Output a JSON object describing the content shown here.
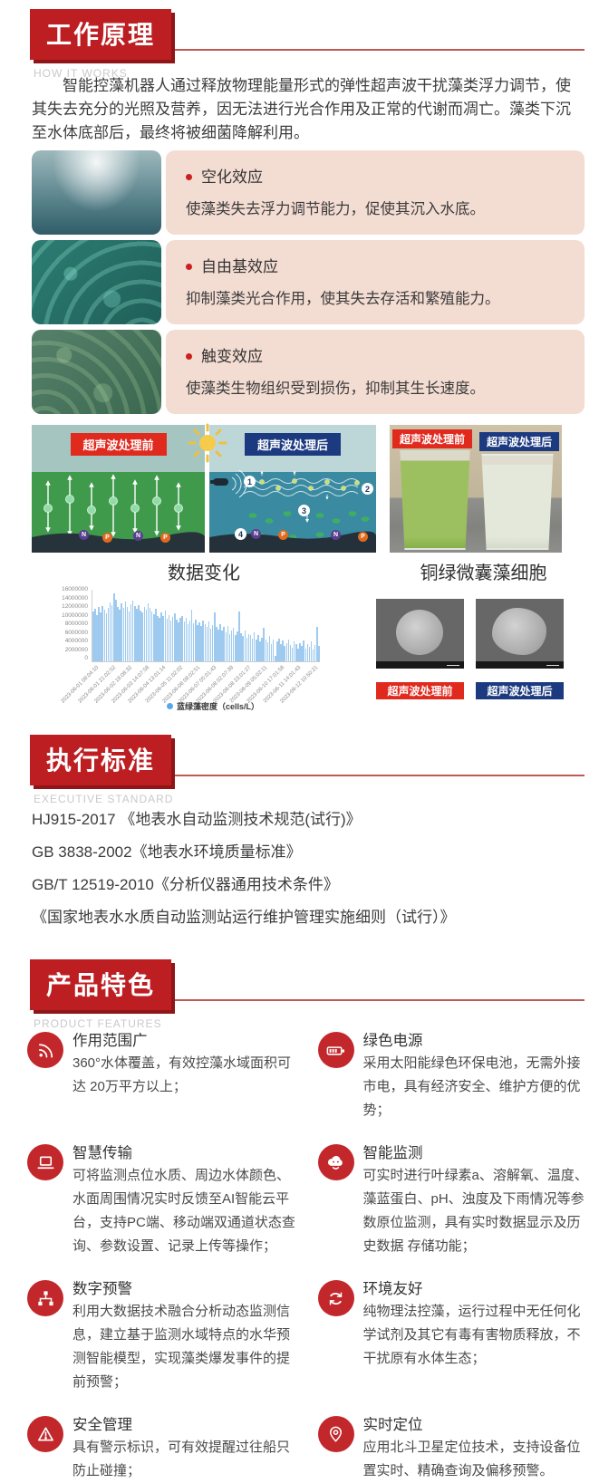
{
  "colors": {
    "accent_red": "#bd1e22",
    "header_shadow": "#8e1518",
    "divider": "#c05a50",
    "card_pink": "#f3dcd2",
    "bar_blue": "#9ecaef",
    "label_red": "#e02a1e",
    "label_navy": "#1c3a80",
    "icon_red": "#c2282b"
  },
  "how_it_works": {
    "title": "工作原理",
    "subtitle": "HOW IT WORKS",
    "intro": "智能控藻机器人通过释放物理能量形式的弹性超声波干扰藻类浮力调节，使其失去充分的光照及营养，因无法进行光合作用及正常的代谢而凋亡。藻类下沉至水体底部后，最终将被细菌降解利用。",
    "effects": [
      {
        "title": "空化效应",
        "desc": "使藻类失去浮力调节能力，促使其沉入水底。"
      },
      {
        "title": "自由基效应",
        "desc": "抑制藻类光合作用，使其失去存活和繁殖能力。"
      },
      {
        "title": "触变效应",
        "desc": "使藻类生物组织受到损伤，抑制其生长速度。"
      }
    ],
    "comparison": {
      "before_label": "超声波处理前",
      "after_label": "超声波处理后",
      "beaker_before_label": "超声波处理前",
      "beaker_after_label": "超声波处理后",
      "steps": [
        "1",
        "2",
        "3",
        "4"
      ],
      "nutrients_before": [
        "N",
        "P",
        "N",
        "P"
      ],
      "nutrients_after": [
        "N",
        "P",
        "N",
        "P"
      ]
    },
    "captions": {
      "chart": "数据变化",
      "cells": "铜绿微囊藻细胞"
    },
    "cells_labels": {
      "before": "超声波处理前",
      "after": "超声波处理后"
    }
  },
  "chart_data": {
    "type": "bar",
    "title": "数据变化",
    "series_name": "蓝绿藻密度（cells/L）",
    "unit": "cells/L",
    "ylim": [
      0,
      16000000
    ],
    "y_tick_step": 2000000,
    "grid": false,
    "legend_position": "bottom",
    "x_tick_labels": [
      "2023-06-01 08:04:10",
      "2023-06-01 21:02:52",
      "2023-06-02 18:08:32",
      "2023-06-03 14:07:58",
      "2023-06-04 13:01:14",
      "2023-06-05 11:02:02",
      "2023-06-06 08:02:51",
      "2023-06-07 05:01:43",
      "2023-06-08 02:07:39",
      "2023-06-08 23:01:27",
      "2023-06-09 05:02:11",
      "2023-06-10 17:01:58",
      "2023-06-11 14:01:43",
      "2023-06-12 10:50:21"
    ],
    "values_millions": [
      11.2,
      11.8,
      10.4,
      12.1,
      11.0,
      12.4,
      11.5,
      10.7,
      12.0,
      13.1,
      12.6,
      15.2,
      13.7,
      12.2,
      11.6,
      12.9,
      11.9,
      13.4,
      12.1,
      11.2,
      12.8,
      13.6,
      12.4,
      11.8,
      12.6,
      11.3,
      10.9,
      12.2,
      11.6,
      13.0,
      12.0,
      11.2,
      10.6,
      11.8,
      10.2,
      9.8,
      10.9,
      10.1,
      11.3,
      9.6,
      10.4,
      9.2,
      9.9,
      10.8,
      9.4,
      8.8,
      9.7,
      10.2,
      8.9,
      9.8,
      8.4,
      9.1,
      11.6,
      8.6,
      9.4,
      8.1,
      8.8,
      7.9,
      9.2,
      8.4,
      7.6,
      8.9,
      7.2,
      8.1,
      10.9,
      7.8,
      7.1,
      8.4,
      6.8,
      7.6,
      6.4,
      7.9,
      6.1,
      6.9,
      7.4,
      5.8,
      6.6,
      11.2,
      6.2,
      5.6,
      6.8,
      5.2,
      6.1,
      5.8,
      5.1,
      6.4,
      4.8,
      5.9,
      4.4,
      5.2,
      7.4,
      4.9,
      4.2,
      5.6,
      3.9,
      4.8,
      1.2,
      4.4,
      5.1,
      3.8,
      4.6,
      3.4,
      4.1,
      4.9,
      3.6,
      3.1,
      4.4,
      3.8,
      2.9,
      4.1,
      3.4,
      4.6,
      2.8,
      3.9,
      3.2,
      4.4,
      2.6,
      3.6,
      7.6,
      3.4
    ]
  },
  "standards": {
    "title": "执行标准",
    "subtitle": "EXECUTIVE STANDARD",
    "items": [
      "HJ915-2017  《地表水自动监测技术规范(试行)》",
      "GB 3838-2002《地表水环境质量标准》",
      "GB/T 12519-2010《分析仪器通用技术条件》",
      "《国家地表水水质自动监测站运行维护管理实施细则（试行）》"
    ]
  },
  "features": {
    "title": "产品特色",
    "subtitle": "PRODUCT FEATURES",
    "items": [
      {
        "icon": "signal-icon",
        "title": "作用范围广",
        "desc": "360°水体覆盖，有效控藻水域面积可达 20万平方以上；"
      },
      {
        "icon": "battery-icon",
        "title": "绿色电源",
        "desc": "采用太阳能绿色环保电池，无需外接市电，具有经济安全、维护方便的优势；"
      },
      {
        "icon": "laptop-icon",
        "title": "智慧传输",
        "desc": "可将监测点位水质、周边水体颜色、水面周围情况实时反馈至AI智能云平台，支持PC端、移动端双通道状态查询、参数设置、记录上传等操作；"
      },
      {
        "icon": "cloud-icon",
        "title": "智能监测",
        "desc": "可实时进行叶绿素a、溶解氧、温度、藻蓝蛋白、pH、浊度及下雨情况等参数原位监测，具有实时数据显示及历史数据 存储功能；"
      },
      {
        "icon": "sitemap-icon",
        "title": "数字预警",
        "desc": "利用大数据技术融合分析动态监测信息，建立基于监测水域特点的水华预测智能模型，实现藻类爆发事件的提前预警；"
      },
      {
        "icon": "recycle-icon",
        "title": "环境友好",
        "desc": "纯物理法控藻，运行过程中无任何化学试剂及其它有毒有害物质释放，不干扰原有水体生态；"
      },
      {
        "icon": "warning-icon",
        "title": "安全管理",
        "desc": "具有警示标识，可有效提醒过往船只防止碰撞；"
      },
      {
        "icon": "pin-icon",
        "title": "实时定位",
        "desc": "应用北斗卫星定位技术，支持设备位置实时、精确查询及偏移预警。"
      }
    ]
  }
}
